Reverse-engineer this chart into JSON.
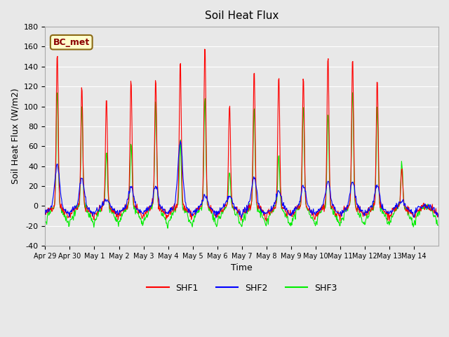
{
  "title": "Soil Heat Flux",
  "xlabel": "Time",
  "ylabel": "Soil Heat Flux (W/m2)",
  "ylim": [
    -40,
    180
  ],
  "yticks": [
    -40,
    -20,
    0,
    20,
    40,
    60,
    80,
    100,
    120,
    140,
    160,
    180
  ],
  "annotation": "BC_met",
  "bg_color": "#e8e8e8",
  "plot_bg_color": "#e8e8e8",
  "shf1_color": "red",
  "shf2_color": "blue",
  "shf3_color": "#00ee00",
  "legend_labels": [
    "SHF1",
    "SHF2",
    "SHF3"
  ],
  "xtick_labels": [
    "Apr 29",
    "Apr 30",
    "May 1",
    "May 2",
    "May 3",
    "May 4",
    "May 5",
    "May 6",
    "May 7",
    "May 8",
    "May 9",
    "May 10",
    "May 11",
    "May 12",
    "May 13",
    "May 14"
  ],
  "xtick_positions": [
    0,
    1,
    2,
    3,
    4,
    5,
    6,
    7,
    8,
    9,
    10,
    11,
    12,
    13,
    14,
    15
  ],
  "n_days": 16,
  "pts_per_day": 48,
  "shf1_peaks": [
    157,
    120,
    108,
    126,
    129,
    149,
    161,
    103,
    138,
    133,
    131,
    151,
    149,
    129,
    38,
    0
  ],
  "shf2_peaks": [
    42,
    28,
    5,
    20,
    20,
    65,
    10,
    10,
    30,
    15,
    20,
    25,
    25,
    20,
    5,
    0
  ],
  "shf3_peaks": [
    118,
    100,
    55,
    62,
    107,
    65,
    110,
    35,
    100,
    50,
    104,
    95,
    118,
    100,
    45,
    0
  ]
}
